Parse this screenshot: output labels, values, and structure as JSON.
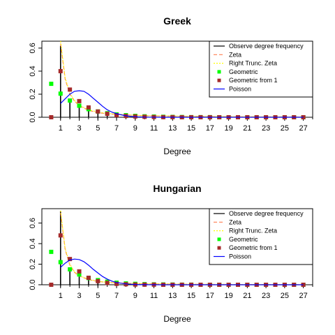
{
  "chart_data": [
    {
      "type": "line",
      "title": "Greek",
      "xlabel": "Degree",
      "ylabel": "",
      "xlim": [
        -1,
        28
      ],
      "ylim": [
        0,
        0.66
      ],
      "x_ticks": [
        1,
        3,
        5,
        7,
        9,
        11,
        13,
        15,
        17,
        19,
        21,
        23,
        25,
        27
      ],
      "y_ticks": [
        0.0,
        0.2,
        0.4,
        0.6
      ],
      "grid": false,
      "legend_position": "top-right",
      "legend": [
        "Observe degree frequency",
        "Zeta",
        "Right Trunc. Zeta",
        "Geometric",
        "Geometric from 1",
        "Poisson"
      ],
      "series": [
        {
          "name": "Observe degree frequency",
          "kind": "spikes",
          "color": "#000000",
          "x": [
            1,
            2,
            3,
            4,
            5,
            6,
            7,
            8,
            9,
            10
          ],
          "values": [
            0.62,
            0.14,
            0.09,
            0.06,
            0.04,
            0.03,
            0.02,
            0.015,
            0.01,
            0.008
          ]
        },
        {
          "name": "Zeta",
          "kind": "line",
          "dash": "dashed",
          "color": "#ff7f50",
          "x": [
            1,
            1.5,
            2,
            2.5,
            3,
            4,
            5,
            6,
            8,
            10,
            15,
            20,
            27
          ],
          "values": [
            0.64,
            0.33,
            0.2,
            0.14,
            0.1,
            0.06,
            0.04,
            0.03,
            0.02,
            0.013,
            0.007,
            0.004,
            0.002
          ]
        },
        {
          "name": "Right Trunc. Zeta",
          "kind": "line",
          "dash": "dotted",
          "color": "#ffff00",
          "x": [
            1,
            1.5,
            2,
            2.5,
            3,
            4,
            5,
            6,
            8,
            10,
            15,
            20,
            27
          ],
          "values": [
            0.66,
            0.34,
            0.21,
            0.145,
            0.105,
            0.065,
            0.045,
            0.033,
            0.021,
            0.014,
            0.008,
            0.005,
            0.003
          ]
        },
        {
          "name": "Geometric",
          "kind": "points",
          "color": "#00ff00",
          "x": [
            0,
            1,
            2,
            3,
            4,
            5,
            6,
            7,
            8,
            9,
            10,
            11,
            12,
            13,
            14,
            15,
            16,
            17,
            18,
            19,
            20,
            21,
            22,
            23,
            24,
            25,
            26,
            27
          ],
          "values": [
            0.29,
            0.205,
            0.145,
            0.1,
            0.07,
            0.05,
            0.035,
            0.025,
            0.018,
            0.012,
            0.008,
            0.006,
            0.004,
            0.003,
            0.002,
            0.001,
            0.001,
            0.001,
            0.0,
            0.0,
            0.0,
            0.0,
            0.0,
            0.0,
            0.0,
            0.0,
            0.0,
            0.0
          ]
        },
        {
          "name": "Geometric from 1",
          "kind": "points",
          "color": "#a52a2a",
          "x": [
            0,
            1,
            2,
            3,
            4,
            5,
            6,
            7,
            8,
            9,
            10,
            11,
            12,
            13,
            14,
            15,
            16,
            17,
            18,
            19,
            20,
            21,
            22,
            23,
            24,
            25,
            26,
            27
          ],
          "values": [
            0.0,
            0.4,
            0.24,
            0.14,
            0.085,
            0.05,
            0.03,
            0.018,
            0.011,
            0.007,
            0.004,
            0.002,
            0.001,
            0.001,
            0.0,
            0.0,
            0.0,
            0.0,
            0.0,
            0.0,
            0.0,
            0.0,
            0.0,
            0.0,
            0.0,
            0.0,
            0.0,
            0.0
          ]
        },
        {
          "name": "Poisson",
          "kind": "line",
          "color": "#0000ff",
          "x": [
            1,
            1.5,
            2,
            2.5,
            3,
            3.5,
            4,
            4.5,
            5,
            5.5,
            6,
            6.5,
            7,
            8,
            9,
            10,
            12,
            15,
            27
          ],
          "values": [
            0.12,
            0.16,
            0.2,
            0.225,
            0.23,
            0.225,
            0.2,
            0.165,
            0.13,
            0.095,
            0.065,
            0.045,
            0.03,
            0.012,
            0.004,
            0.001,
            0.0,
            0.0,
            0.0
          ]
        }
      ]
    },
    {
      "type": "line",
      "title": "Hungarian",
      "xlabel": "Degree",
      "ylabel": "",
      "xlim": [
        -1,
        28
      ],
      "ylim": [
        0,
        0.74
      ],
      "x_ticks": [
        1,
        3,
        5,
        7,
        9,
        11,
        13,
        15,
        17,
        19,
        21,
        23,
        25,
        27
      ],
      "y_ticks": [
        0.0,
        0.2,
        0.4,
        0.6
      ],
      "grid": false,
      "legend_position": "top-right",
      "legend": [
        "Observe degree frequency",
        "Zeta",
        "Right Trunc. Zeta",
        "Geometric",
        "Geometric from 1",
        "Poisson"
      ],
      "series": [
        {
          "name": "Observe degree frequency",
          "kind": "spikes",
          "color": "#000000",
          "x": [
            1,
            2,
            3,
            4,
            5,
            6,
            7,
            8,
            9,
            10
          ],
          "values": [
            0.72,
            0.16,
            0.08,
            0.045,
            0.03,
            0.02,
            0.012,
            0.008,
            0.005,
            0.004
          ]
        },
        {
          "name": "Zeta",
          "kind": "line",
          "dash": "dashed",
          "color": "#ff7f50",
          "x": [
            1,
            1.5,
            2,
            2.5,
            3,
            4,
            5,
            6,
            8,
            10,
            15,
            20,
            27
          ],
          "values": [
            0.7,
            0.34,
            0.19,
            0.12,
            0.085,
            0.05,
            0.032,
            0.023,
            0.014,
            0.009,
            0.005,
            0.003,
            0.002
          ]
        },
        {
          "name": "Right Trunc. Zeta",
          "kind": "line",
          "dash": "dotted",
          "color": "#ffff00",
          "x": [
            1,
            1.5,
            2,
            2.5,
            3,
            4,
            5,
            6,
            8,
            10,
            15,
            20,
            27
          ],
          "values": [
            0.72,
            0.35,
            0.2,
            0.125,
            0.088,
            0.052,
            0.034,
            0.024,
            0.015,
            0.01,
            0.005,
            0.003,
            0.002
          ]
        },
        {
          "name": "Geometric",
          "kind": "points",
          "color": "#00ff00",
          "x": [
            0,
            1,
            2,
            3,
            4,
            5,
            6,
            7,
            8,
            9,
            10,
            11,
            12,
            13,
            14,
            15,
            16,
            17,
            18,
            19,
            20,
            21,
            22,
            23,
            24,
            25,
            26,
            27
          ],
          "values": [
            0.32,
            0.22,
            0.15,
            0.1,
            0.065,
            0.045,
            0.03,
            0.02,
            0.013,
            0.009,
            0.006,
            0.004,
            0.003,
            0.002,
            0.001,
            0.001,
            0.0,
            0.0,
            0.0,
            0.0,
            0.0,
            0.0,
            0.0,
            0.0,
            0.0,
            0.0,
            0.0,
            0.0
          ]
        },
        {
          "name": "Geometric from 1",
          "kind": "points",
          "color": "#a52a2a",
          "x": [
            0,
            1,
            2,
            3,
            4,
            5,
            6,
            7,
            8,
            9,
            10,
            11,
            12,
            13,
            14,
            15,
            16,
            17,
            18,
            19,
            20,
            21,
            22,
            23,
            24,
            25,
            26,
            27
          ],
          "values": [
            0.0,
            0.48,
            0.25,
            0.13,
            0.068,
            0.035,
            0.018,
            0.009,
            0.005,
            0.002,
            0.001,
            0.001,
            0.0,
            0.0,
            0.0,
            0.0,
            0.0,
            0.0,
            0.0,
            0.0,
            0.0,
            0.0,
            0.0,
            0.0,
            0.0,
            0.0,
            0.0,
            0.0
          ]
        },
        {
          "name": "Poisson",
          "kind": "line",
          "color": "#0000ff",
          "x": [
            1,
            1.5,
            2,
            2.5,
            3,
            3.5,
            4,
            4.5,
            5,
            5.5,
            6,
            6.5,
            7,
            8,
            9,
            10,
            12,
            15,
            27
          ],
          "values": [
            0.17,
            0.21,
            0.24,
            0.25,
            0.245,
            0.225,
            0.19,
            0.15,
            0.115,
            0.08,
            0.055,
            0.035,
            0.022,
            0.008,
            0.003,
            0.001,
            0.0,
            0.0,
            0.0
          ]
        }
      ]
    }
  ]
}
